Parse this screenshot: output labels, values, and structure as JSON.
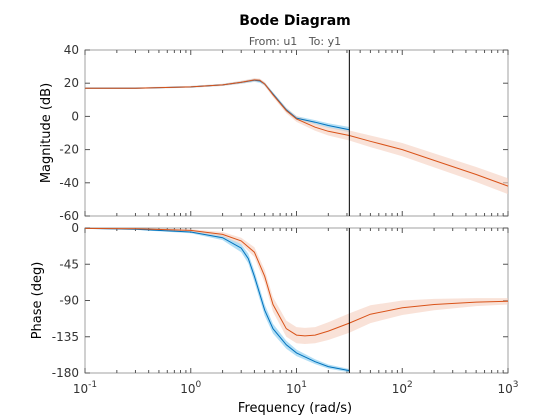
{
  "chart_data": {
    "type": "line",
    "title": "Bode Diagram",
    "subtitle": {
      "from_label": "From: u1",
      "to_label": "To: y1"
    },
    "xlabel": "Frequency  (rad/s)",
    "xscale": "log",
    "xlim": [
      0.1,
      1000
    ],
    "x_ticks": [
      {
        "base": "10",
        "exp": "-1"
      },
      {
        "base": "10",
        "exp": "0"
      },
      {
        "base": "10",
        "exp": "1"
      },
      {
        "base": "10",
        "exp": "2"
      },
      {
        "base": "10",
        "exp": "3"
      }
    ],
    "vertical_marker_x": 31.6,
    "grid": false,
    "panels": [
      {
        "name": "magnitude",
        "ylabel": "Magnitude (dB)",
        "ylim": [
          -60,
          40
        ],
        "y_ticks": [
          "40",
          "20",
          "0",
          "-20",
          "-40",
          "-60"
        ],
        "y_tick_values": [
          40,
          20,
          0,
          -20,
          -40,
          -60
        ],
        "series": [
          {
            "color": "#0072bd",
            "band_color": "#7fc8ef",
            "x": [
              0.1,
              0.3,
              1,
              2,
              3,
              4,
              4.5,
              5,
              6,
              8,
              10,
              15,
              20,
              31.6
            ],
            "values": [
              17,
              17,
              17.8,
              19,
              20.5,
              21.8,
              21.3,
              19.5,
              13.5,
              4,
              -1,
              -3.5,
              -5.5,
              -8
            ],
            "band": [
              0.3,
              0.3,
              0.5,
              0.6,
              0.8,
              1,
              1,
              1,
              1,
              1.2,
              1.2,
              1.3,
              1.4,
              1.6
            ]
          },
          {
            "color": "#d95319",
            "band_color": "#f5cfbe",
            "x": [
              0.1,
              0.3,
              1,
              2,
              3,
              4,
              4.5,
              5,
              6,
              8,
              10,
              15,
              20,
              31.6,
              50,
              100,
              200,
              500,
              1000
            ],
            "values": [
              17,
              17,
              17.8,
              19,
              20.6,
              22,
              21.8,
              19.5,
              13,
              3.5,
              -1.5,
              -6.5,
              -9,
              -11.5,
              -15,
              -20,
              -26.5,
              -35,
              -42
            ],
            "band": [
              0.5,
              0.5,
              0.6,
              0.7,
              0.9,
              1,
              1,
              1.2,
              1.4,
              1.6,
              1.8,
              2.2,
              2.5,
              3,
              3.5,
              4,
              4.2,
              4.5,
              4.8
            ]
          }
        ]
      },
      {
        "name": "phase",
        "ylabel": "Phase (deg)",
        "ylim": [
          -180,
          0
        ],
        "y_ticks": [
          "0",
          "-45",
          "-90",
          "-135",
          "-180"
        ],
        "y_tick_values": [
          0,
          -45,
          -90,
          -135,
          -180
        ],
        "series": [
          {
            "color": "#0072bd",
            "band_color": "#7fc8ef",
            "x": [
              0.1,
              0.3,
              1,
              2,
              3,
              3.5,
              4,
              5,
              6,
              8,
              10,
              15,
              20,
              31.6
            ],
            "values": [
              -0.5,
              -1.5,
              -5,
              -12,
              -25,
              -38,
              -60,
              -102,
              -125,
              -145,
              -155,
              -166,
              -172,
              -177
            ],
            "band": [
              0.5,
              0.8,
              1.5,
              3,
              5,
              6,
              7,
              7,
              6,
              5,
              4,
              3,
              2.5,
              2
            ]
          },
          {
            "color": "#d95319",
            "band_color": "#f5cfbe",
            "x": [
              0.1,
              0.3,
              1,
              2,
              3,
              4,
              5,
              6,
              8,
              10,
              12,
              15,
              20,
              31.6,
              50,
              100,
              200,
              500,
              1000
            ],
            "values": [
              -0.5,
              -1,
              -3,
              -8,
              -16,
              -30,
              -60,
              -95,
              -125,
              -133,
              -134,
              -133,
              -128,
              -118,
              -107,
              -99,
              -95,
              -92,
              -91
            ],
            "band": [
              0.5,
              0.8,
              1.5,
              3,
              4,
              6,
              8,
              9,
              10,
              10,
              10,
              10,
              11,
              12,
              11,
              9,
              7,
              5,
              4
            ]
          }
        ]
      }
    ]
  }
}
